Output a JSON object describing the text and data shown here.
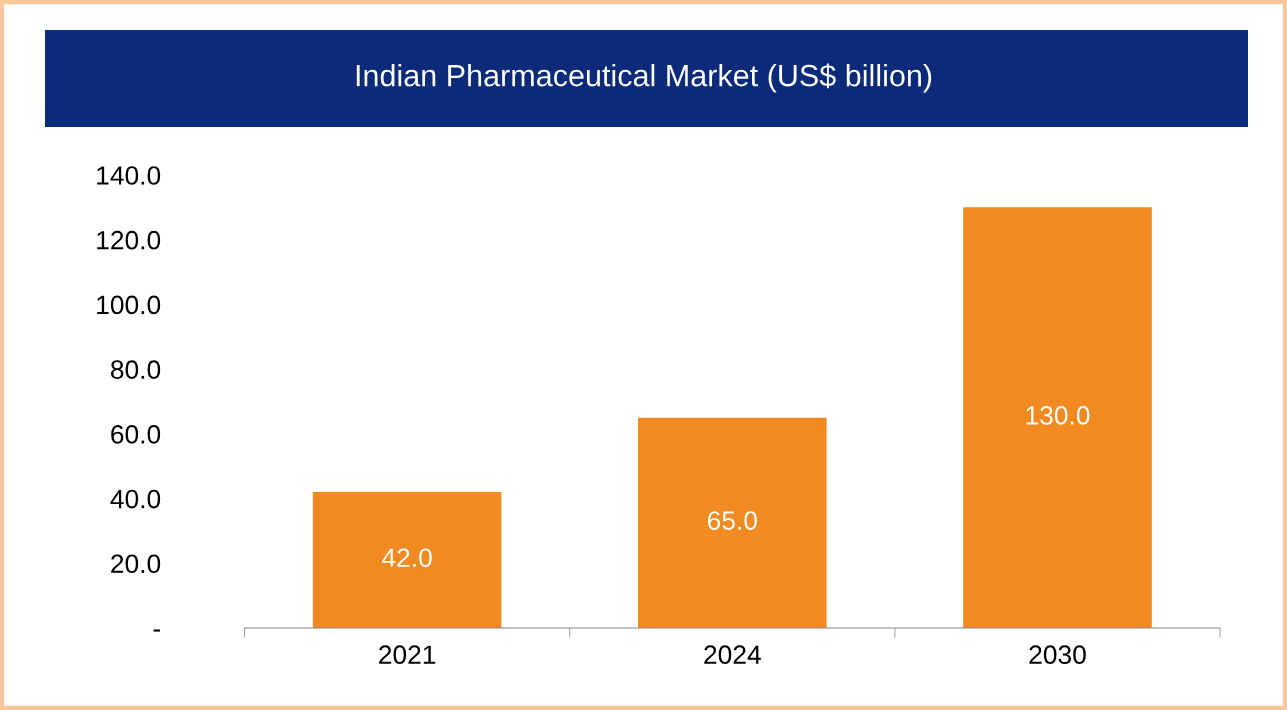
{
  "chart_data": {
    "type": "bar",
    "title": "Indian Pharmaceutical Market (US$ billion)",
    "categories": [
      "2021",
      "2024",
      "2030"
    ],
    "values": [
      42.0,
      65.0,
      130.0
    ],
    "value_labels": [
      "42.0",
      "65.0",
      "130.0"
    ],
    "color": "#f28a22",
    "ylim": [
      0,
      140
    ],
    "yticks": [
      {
        "value": 0,
        "label": "-"
      },
      {
        "value": 20,
        "label": "20.0"
      },
      {
        "value": 40,
        "label": "40.0"
      },
      {
        "value": 60,
        "label": "60.0"
      },
      {
        "value": 80,
        "label": "80.0"
      },
      {
        "value": 100,
        "label": "100.0"
      },
      {
        "value": 120,
        "label": "120.0"
      },
      {
        "value": 140,
        "label": "140.0"
      }
    ],
    "grid": false
  }
}
